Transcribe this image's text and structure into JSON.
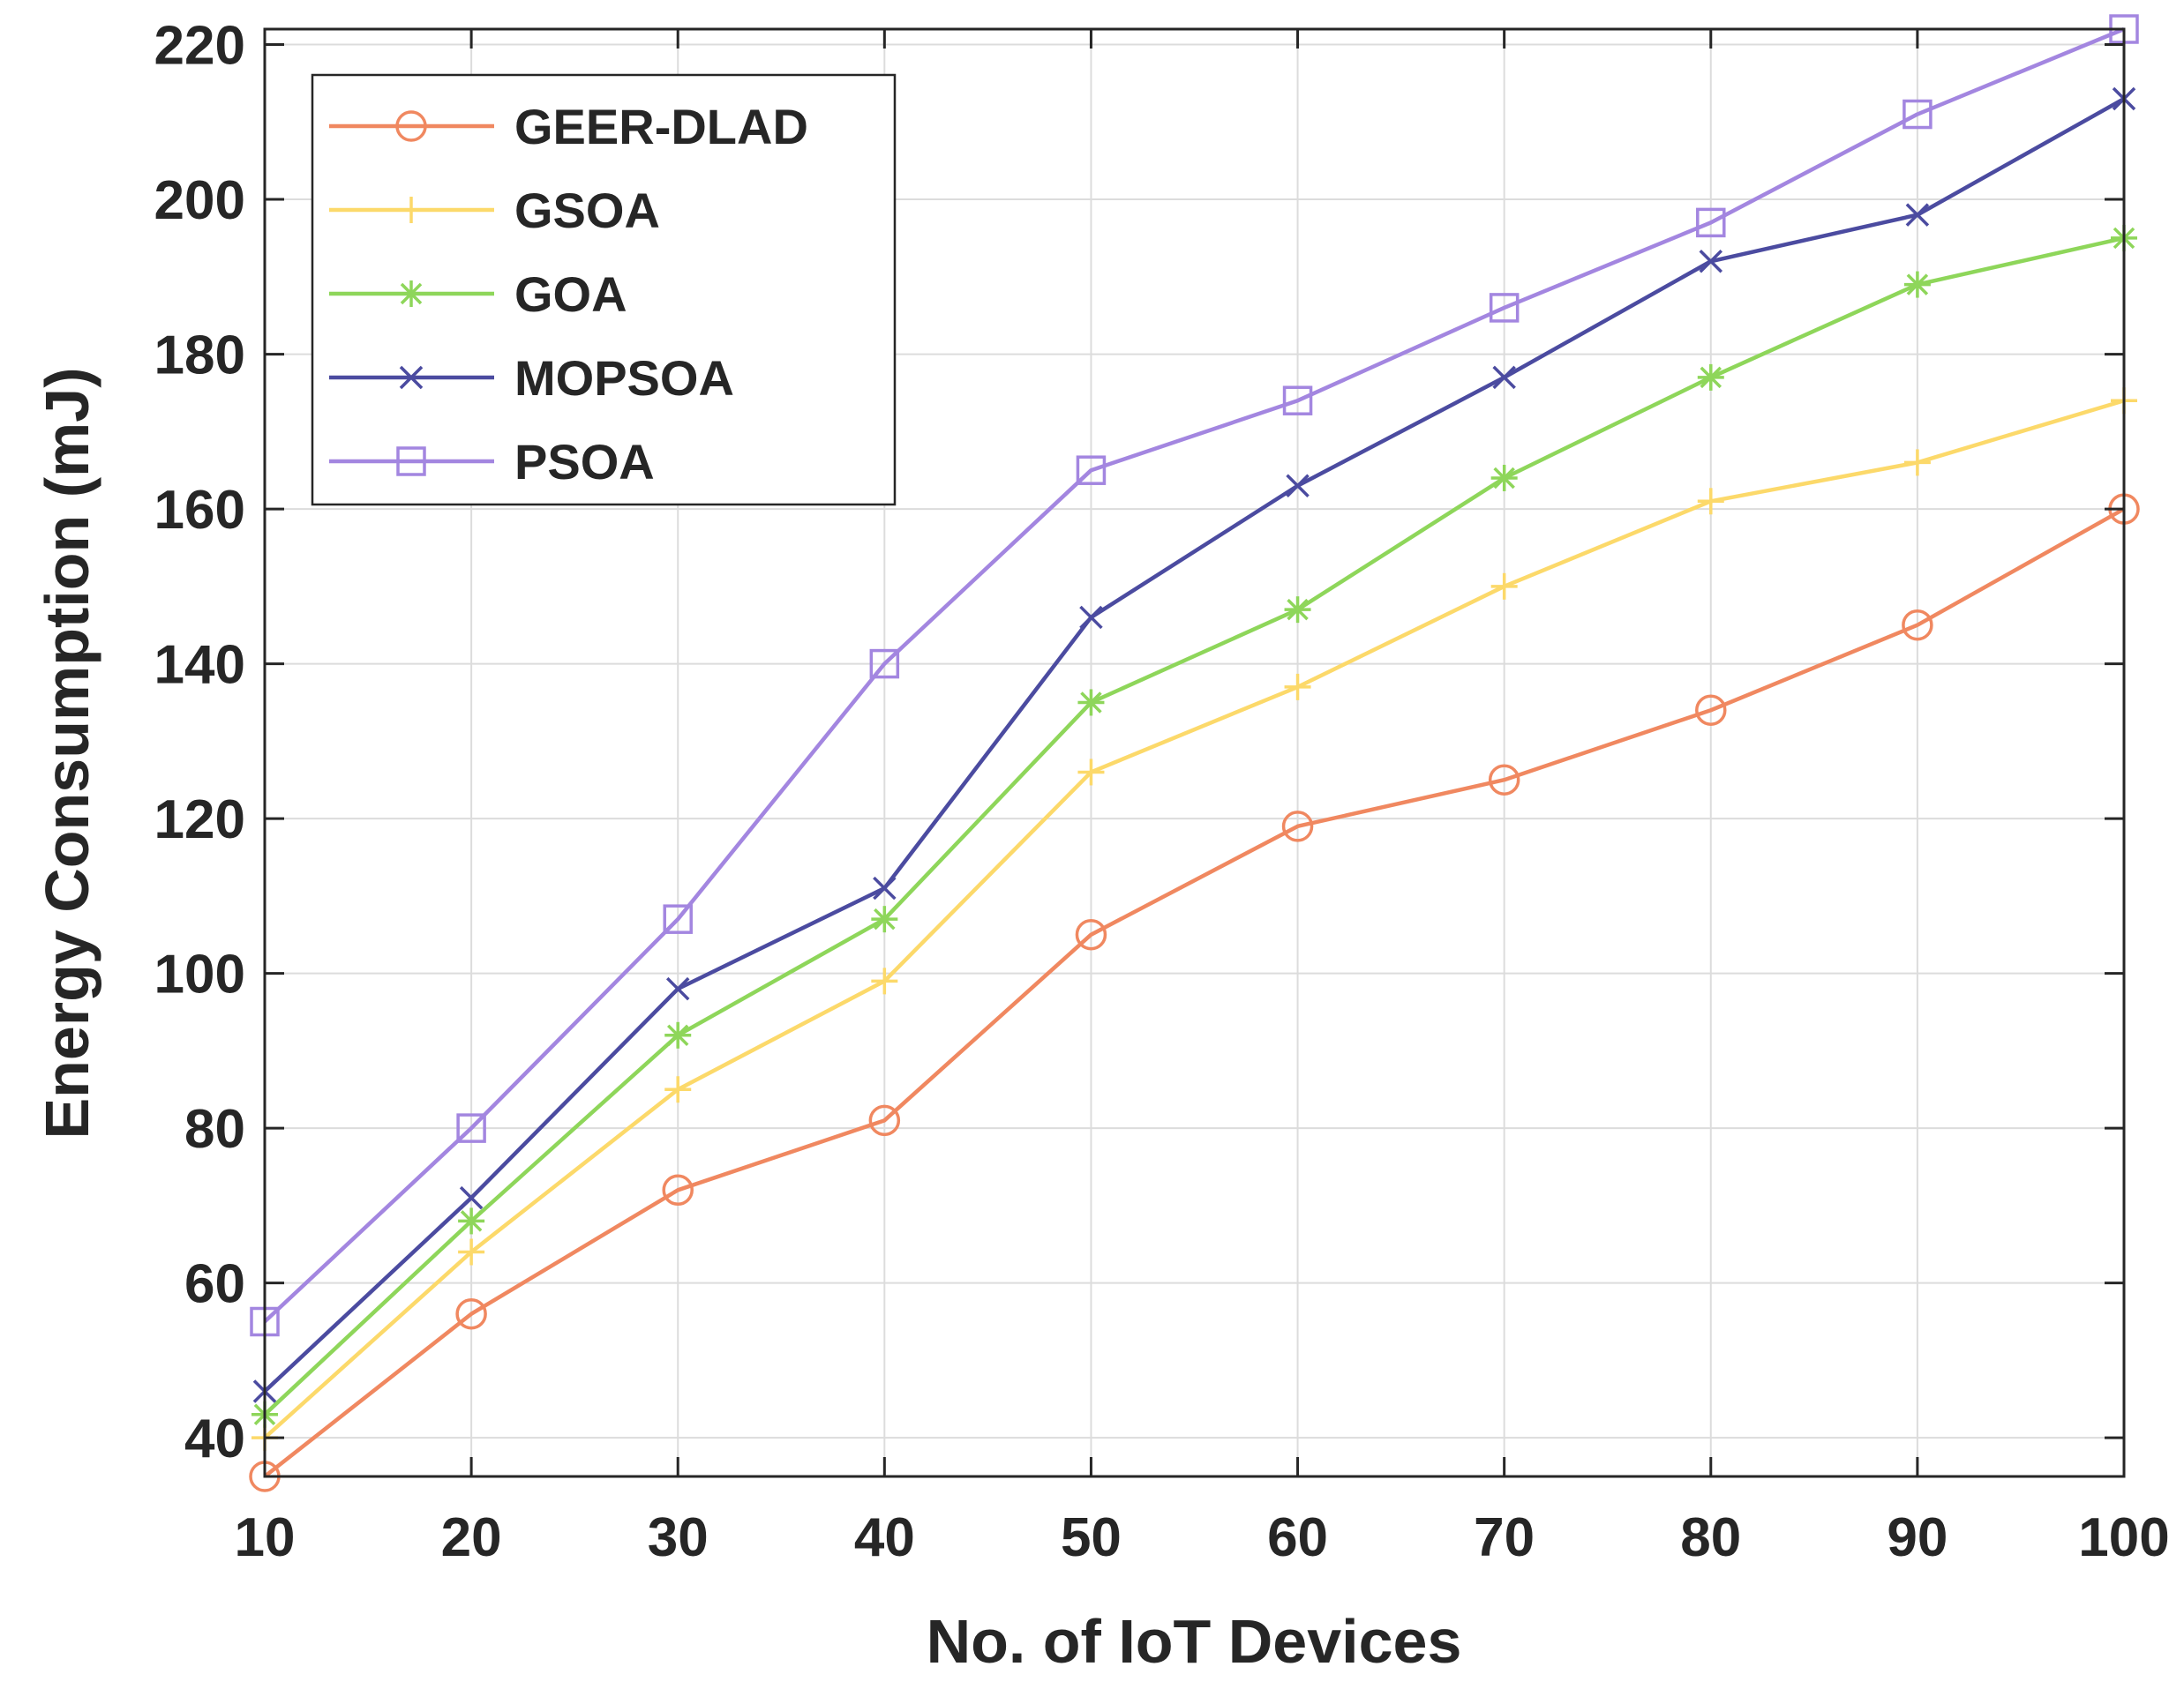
{
  "chart_data": {
    "type": "line",
    "title": "",
    "xlabel": "No. of IoT Devices",
    "ylabel": "Energy Consumption (mJ)",
    "x": [
      10,
      20,
      30,
      40,
      50,
      60,
      70,
      80,
      90,
      100
    ],
    "xlim": [
      10,
      100
    ],
    "ylim": [
      35,
      222
    ],
    "xticks": [
      "10",
      "20",
      "30",
      "40",
      "50",
      "60",
      "70",
      "80",
      "90",
      "100"
    ],
    "yticks": [
      "40",
      "60",
      "80",
      "100",
      "120",
      "140",
      "160",
      "180",
      "200",
      "220"
    ],
    "grid": true,
    "legend_position": "top-left",
    "series": [
      {
        "name": "GEER-DLAD",
        "color": "#F08860",
        "marker": "circle",
        "values": [
          35,
          56,
          72,
          81,
          105,
          119,
          125,
          134,
          145,
          160
        ]
      },
      {
        "name": "GSOA",
        "color": "#FCD96A",
        "marker": "plus",
        "values": [
          40,
          64,
          85,
          99,
          126,
          137,
          150,
          161,
          166,
          174
        ]
      },
      {
        "name": "GOA",
        "color": "#8ED65A",
        "marker": "asterisk",
        "values": [
          43,
          68,
          92,
          107,
          135,
          147,
          164,
          177,
          189,
          195
        ]
      },
      {
        "name": "MOPSOA",
        "color": "#4B4BA0",
        "marker": "cross",
        "values": [
          46,
          71,
          98,
          111,
          146,
          163,
          177,
          192,
          198,
          213
        ]
      },
      {
        "name": "PSOA",
        "color": "#A386E0",
        "marker": "square",
        "values": [
          55,
          80,
          107,
          140,
          165,
          174,
          186,
          197,
          211,
          222
        ]
      }
    ]
  }
}
